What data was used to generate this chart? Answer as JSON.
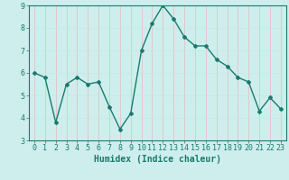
{
  "x": [
    0,
    1,
    2,
    3,
    4,
    5,
    6,
    7,
    8,
    9,
    10,
    11,
    12,
    13,
    14,
    15,
    16,
    17,
    18,
    19,
    20,
    21,
    22,
    23
  ],
  "y": [
    6.0,
    5.8,
    3.8,
    5.5,
    5.8,
    5.5,
    5.6,
    4.5,
    3.5,
    4.2,
    7.0,
    8.2,
    9.0,
    8.4,
    7.6,
    7.2,
    7.2,
    6.6,
    6.3,
    5.8,
    5.6,
    4.3,
    4.9,
    4.4
  ],
  "xlabel": "Humidex (Indice chaleur)",
  "ylim": [
    3,
    9
  ],
  "xlim": [
    -0.5,
    23.5
  ],
  "yticks": [
    3,
    4,
    5,
    6,
    7,
    8,
    9
  ],
  "xticks": [
    0,
    1,
    2,
    3,
    4,
    5,
    6,
    7,
    8,
    9,
    10,
    11,
    12,
    13,
    14,
    15,
    16,
    17,
    18,
    19,
    20,
    21,
    22,
    23
  ],
  "line_color": "#1a7a6e",
  "marker": "D",
  "marker_size": 2.0,
  "bg_color": "#ceeeed",
  "grid_color_v": "#e8b8b8",
  "grid_color_h": "#c8e8e6",
  "axis_color": "#1a7a6e",
  "tick_label_color": "#1a7a6e",
  "xlabel_color": "#1a7a6e",
  "xlabel_fontsize": 7,
  "tick_fontsize": 6,
  "line_width": 1.0
}
